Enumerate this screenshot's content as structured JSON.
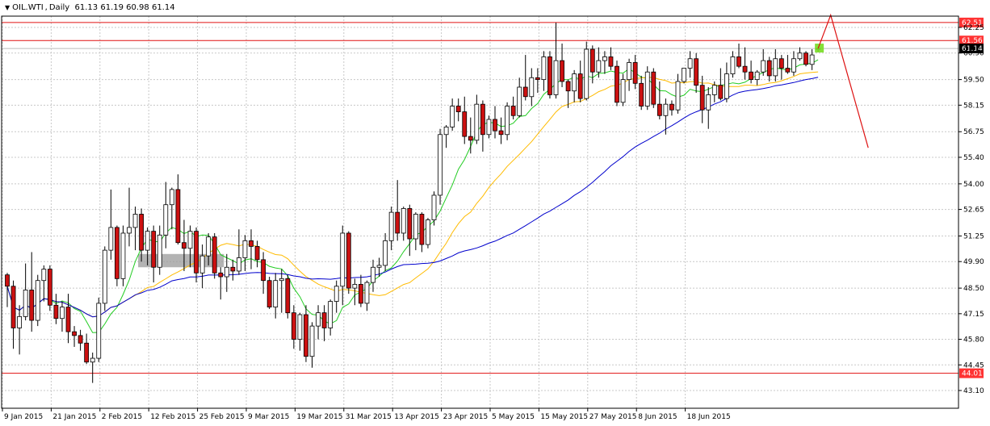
{
  "header": {
    "symbol": "OIL.WTI",
    "timeframe": "Daily",
    "ohlc": "61.13 61.19 60.98 61.14"
  },
  "colors": {
    "bull_body": "#ffffff",
    "bear_body": "#cc1111",
    "hline": "#e01010",
    "hline_fill": "#ff3333",
    "ma_fast": "#22cc22",
    "ma_mid": "#ffbb00",
    "ma_slow": "#0000cc",
    "last_price_bg": "#000000",
    "forecast": "#dd1111",
    "grid": "#c8c8c8"
  },
  "chart_data": {
    "type": "candlestick",
    "ylim": [
      43.1,
      63.4
    ],
    "y_ticks": [
      "43.10",
      "44.45",
      "45.80",
      "47.15",
      "48.50",
      "49.90",
      "51.25",
      "52.65",
      "54.00",
      "55.40",
      "56.75",
      "58.15",
      "59.50",
      "60.90",
      "62.25"
    ],
    "x_labels": [
      "9 Jan 2015",
      "21 Jan 2015",
      "2 Feb 2015",
      "12 Feb 2015",
      "25 Feb 2015",
      "9 Mar 2015",
      "19 Mar 2015",
      "31 Mar 2015",
      "13 Apr 2015",
      "23 Apr 2015",
      "5 May 2015",
      "15 May 2015",
      "27 May 2015",
      "8 Jun 2015",
      "18 Jun 2015"
    ],
    "x_label_index": [
      0,
      8,
      16,
      24,
      32,
      40,
      48,
      56,
      64,
      72,
      80,
      88,
      96,
      104,
      112
    ],
    "candles": [
      [
        49.2,
        49.3,
        47.5,
        48.6
      ],
      [
        48.6,
        48.9,
        45.3,
        46.4
      ],
      [
        46.4,
        47.6,
        45.0,
        47.0
      ],
      [
        47.0,
        49.8,
        46.8,
        48.4
      ],
      [
        48.4,
        50.4,
        46.2,
        46.8
      ],
      [
        46.8,
        49.2,
        46.5,
        48.9
      ],
      [
        48.9,
        49.7,
        47.8,
        49.5
      ],
      [
        49.5,
        49.7,
        47.3,
        47.6
      ],
      [
        47.6,
        48.2,
        46.6,
        46.9
      ],
      [
        46.9,
        47.8,
        46.2,
        47.5
      ],
      [
        47.5,
        48.2,
        45.6,
        46.2
      ],
      [
        46.2,
        46.5,
        45.4,
        46.0
      ],
      [
        46.0,
        46.3,
        45.2,
        45.6
      ],
      [
        45.6,
        46.1,
        44.5,
        44.6
      ],
      [
        44.6,
        45.1,
        43.5,
        44.8
      ],
      [
        44.8,
        48.0,
        44.6,
        47.7
      ],
      [
        47.7,
        50.7,
        47.3,
        50.5
      ],
      [
        50.5,
        53.7,
        50.0,
        51.7
      ],
      [
        51.7,
        51.8,
        48.6,
        49.0
      ],
      [
        49.0,
        51.8,
        48.6,
        51.4
      ],
      [
        51.4,
        53.8,
        50.7,
        51.7
      ],
      [
        51.7,
        52.8,
        50.5,
        52.4
      ],
      [
        52.4,
        52.7,
        49.9,
        50.5
      ],
      [
        50.5,
        51.7,
        49.7,
        51.5
      ],
      [
        51.5,
        51.8,
        48.8,
        49.6
      ],
      [
        49.6,
        51.8,
        49.2,
        51.3
      ],
      [
        51.3,
        54.1,
        50.6,
        52.9
      ],
      [
        52.9,
        53.8,
        51.6,
        53.7
      ],
      [
        53.7,
        54.5,
        50.8,
        50.9
      ],
      [
        50.9,
        52.1,
        49.4,
        50.6
      ],
      [
        50.6,
        51.8,
        49.6,
        51.5
      ],
      [
        51.5,
        51.7,
        48.8,
        49.3
      ],
      [
        49.3,
        50.8,
        48.5,
        50.2
      ],
      [
        50.2,
        51.4,
        49.7,
        51.2
      ],
      [
        51.2,
        51.4,
        49.0,
        49.3
      ],
      [
        49.3,
        49.6,
        47.9,
        49.1
      ],
      [
        49.1,
        50.3,
        48.3,
        49.6
      ],
      [
        49.6,
        50.0,
        48.9,
        49.4
      ],
      [
        49.4,
        51.6,
        49.2,
        50.1
      ],
      [
        50.1,
        51.3,
        49.4,
        51.0
      ],
      [
        51.0,
        51.6,
        49.5,
        50.7
      ],
      [
        50.7,
        51.0,
        49.6,
        50.0
      ],
      [
        50.0,
        50.4,
        48.2,
        48.9
      ],
      [
        48.9,
        49.1,
        47.4,
        47.5
      ],
      [
        47.5,
        49.3,
        46.9,
        48.9
      ],
      [
        48.9,
        49.5,
        47.2,
        49.0
      ],
      [
        49.0,
        49.2,
        46.9,
        47.2
      ],
      [
        47.2,
        47.6,
        45.3,
        45.8
      ],
      [
        45.8,
        47.2,
        45.2,
        47.1
      ],
      [
        47.1,
        47.6,
        44.6,
        44.9
      ],
      [
        44.9,
        46.7,
        44.3,
        46.5
      ],
      [
        46.5,
        47.6,
        45.8,
        47.2
      ],
      [
        47.2,
        47.6,
        45.7,
        46.4
      ],
      [
        46.4,
        47.9,
        46.0,
        47.8
      ],
      [
        47.8,
        48.9,
        47.2,
        48.6
      ],
      [
        48.6,
        51.8,
        47.6,
        51.4
      ],
      [
        51.4,
        51.5,
        48.2,
        48.5
      ],
      [
        48.5,
        49.0,
        47.6,
        48.7
      ],
      [
        48.7,
        49.2,
        47.5,
        47.7
      ],
      [
        47.7,
        48.9,
        47.3,
        48.8
      ],
      [
        48.8,
        50.0,
        48.3,
        49.6
      ],
      [
        49.6,
        50.1,
        49.1,
        49.7
      ],
      [
        49.7,
        51.4,
        49.4,
        51.0
      ],
      [
        51.0,
        52.8,
        50.5,
        52.5
      ],
      [
        52.5,
        54.2,
        51.0,
        51.4
      ],
      [
        51.4,
        52.8,
        51.0,
        52.7
      ],
      [
        52.7,
        52.9,
        50.2,
        51.1
      ],
      [
        51.1,
        52.5,
        50.5,
        52.4
      ],
      [
        52.4,
        52.5,
        50.4,
        50.8
      ],
      [
        50.8,
        52.2,
        50.6,
        52.1
      ],
      [
        52.1,
        53.6,
        51.8,
        53.4
      ],
      [
        53.4,
        56.9,
        52.9,
        56.6
      ],
      [
        56.6,
        57.1,
        55.9,
        57.0
      ],
      [
        57.0,
        58.5,
        56.8,
        58.1
      ],
      [
        58.1,
        58.5,
        57.3,
        57.8
      ],
      [
        57.8,
        58.6,
        56.1,
        56.5
      ],
      [
        56.5,
        57.5,
        55.6,
        56.3
      ],
      [
        56.3,
        58.7,
        56.1,
        58.2
      ],
      [
        58.2,
        58.4,
        55.7,
        56.6
      ],
      [
        56.6,
        57.6,
        56.4,
        57.4
      ],
      [
        57.4,
        58.1,
        56.4,
        56.8
      ],
      [
        56.8,
        57.5,
        56.1,
        56.6
      ],
      [
        56.6,
        58.3,
        56.3,
        58.1
      ],
      [
        58.1,
        58.6,
        57.4,
        57.6
      ],
      [
        57.6,
        59.6,
        57.5,
        59.1
      ]
    ],
    "candles_b": [
      [
        59.1,
        60.8,
        58.4,
        58.6
      ],
      [
        58.6,
        60.1,
        58.1,
        59.6
      ],
      [
        59.6,
        60.1,
        58.8,
        59.5
      ],
      [
        59.5,
        61.0,
        58.9,
        60.7
      ],
      [
        60.7,
        61.0,
        58.5,
        58.7
      ],
      [
        58.7,
        62.5,
        58.5,
        60.5
      ],
      [
        60.5,
        61.4,
        59.1,
        59.4
      ],
      [
        59.4,
        59.5,
        58.0,
        58.9
      ],
      [
        58.9,
        60.0,
        58.3,
        59.8
      ],
      [
        59.8,
        60.5,
        58.3,
        58.5
      ],
      [
        58.5,
        61.5,
        58.4,
        61.1
      ],
      [
        61.1,
        61.3,
        59.3,
        59.9
      ],
      [
        59.9,
        61.2,
        59.6,
        60.5
      ],
      [
        60.5,
        61.0,
        59.8,
        60.7
      ],
      [
        60.7,
        61.2,
        60.0,
        60.2
      ],
      [
        60.2,
        60.5,
        58.1,
        58.3
      ],
      [
        58.3,
        59.8,
        58.1,
        59.5
      ],
      [
        59.5,
        60.6,
        58.9,
        60.4
      ],
      [
        60.4,
        60.8,
        59.0,
        59.3
      ],
      [
        59.3,
        59.7,
        57.9,
        58.1
      ],
      [
        58.1,
        60.2,
        57.9,
        59.9
      ],
      [
        59.9,
        60.1,
        58.0,
        58.2
      ],
      [
        58.2,
        59.4,
        57.4,
        57.6
      ],
      [
        57.6,
        58.5,
        56.6,
        58.2
      ],
      [
        58.2,
        58.4,
        57.6,
        57.9
      ],
      [
        57.9,
        59.8,
        57.7,
        59.4
      ],
      [
        59.4,
        60.1,
        59.3,
        60.1
      ],
      [
        60.1,
        61.0,
        59.6,
        60.6
      ],
      [
        60.6,
        60.9,
        58.8,
        59.2
      ],
      [
        59.2,
        59.7,
        57.2,
        57.9
      ],
      [
        57.9,
        59.1,
        56.9,
        58.7
      ],
      [
        58.7,
        59.4,
        58.3,
        59.2
      ],
      [
        59.2,
        60.1,
        58.4,
        58.5
      ],
      [
        58.5,
        60.4,
        58.3,
        59.8
      ],
      [
        59.8,
        61.0,
        59.6,
        60.7
      ],
      [
        60.7,
        61.4,
        60.1,
        60.2
      ],
      [
        60.2,
        61.2,
        59.5,
        59.9
      ],
      [
        59.9,
        60.5,
        59.3,
        59.5
      ],
      [
        59.5,
        60.0,
        59.2,
        59.9
      ],
      [
        59.9,
        61.1,
        59.7,
        60.5
      ],
      [
        60.5,
        60.7,
        59.4,
        59.7
      ],
      [
        59.7,
        61.1,
        59.4,
        60.6
      ],
      [
        60.6,
        60.8,
        59.5,
        60.1
      ],
      [
        60.1,
        60.8,
        59.8,
        59.9
      ],
      [
        59.9,
        61.0,
        59.7,
        60.6
      ],
      [
        60.6,
        61.2,
        60.5,
        60.9
      ],
      [
        60.9,
        61.0,
        60.2,
        60.3
      ],
      [
        60.3,
        61.1,
        60.0,
        60.8
      ],
      [
        61.13,
        61.19,
        60.98,
        61.14
      ]
    ],
    "hlines": [
      {
        "label": "62.51",
        "value": 62.51
      },
      {
        "label": "61.56",
        "value": 61.56
      },
      {
        "label": "44.01",
        "value": 44.01
      }
    ],
    "last_price": "61.14",
    "forecast_path": [
      [
        61.14,
        0
      ],
      [
        62.9,
        1
      ],
      [
        55.9,
        4
      ]
    ]
  }
}
